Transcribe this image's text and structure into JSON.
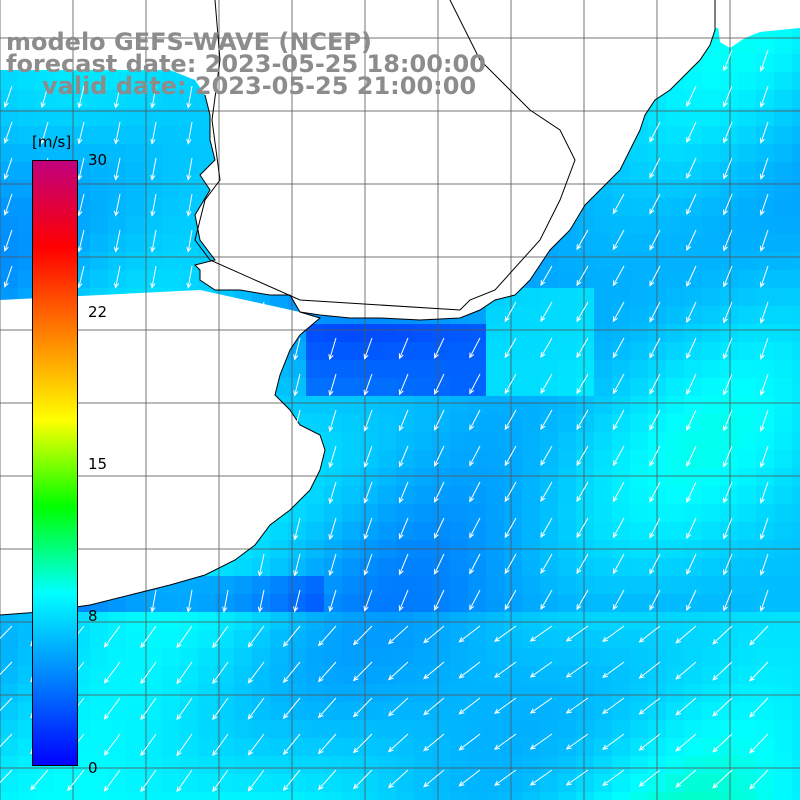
{
  "title": {
    "model": "modelo GEFS-WAVE (NCEP)",
    "forecast": "forecast date: 2023-05-25 18:00:00",
    "valid": "valid date: 2023-05-25 21:00:00"
  },
  "colorbar": {
    "unit": "[m/s]",
    "min": 0,
    "max": 30,
    "ticks": [
      "30",
      "22",
      "15",
      "8",
      "0"
    ],
    "colors": [
      "#0000ff",
      "#0080ff",
      "#00ffff",
      "#00ff00",
      "#ffff00",
      "#ff8000",
      "#ff0000",
      "#c0007f"
    ]
  },
  "map": {
    "land_color": "#ffffff",
    "coastline_color": "#000000",
    "grid_color": "#555555",
    "arrow_color": "#ffffff",
    "wind_direction": "from north-east",
    "wind_speed_range_ms": [
      2,
      9
    ]
  }
}
